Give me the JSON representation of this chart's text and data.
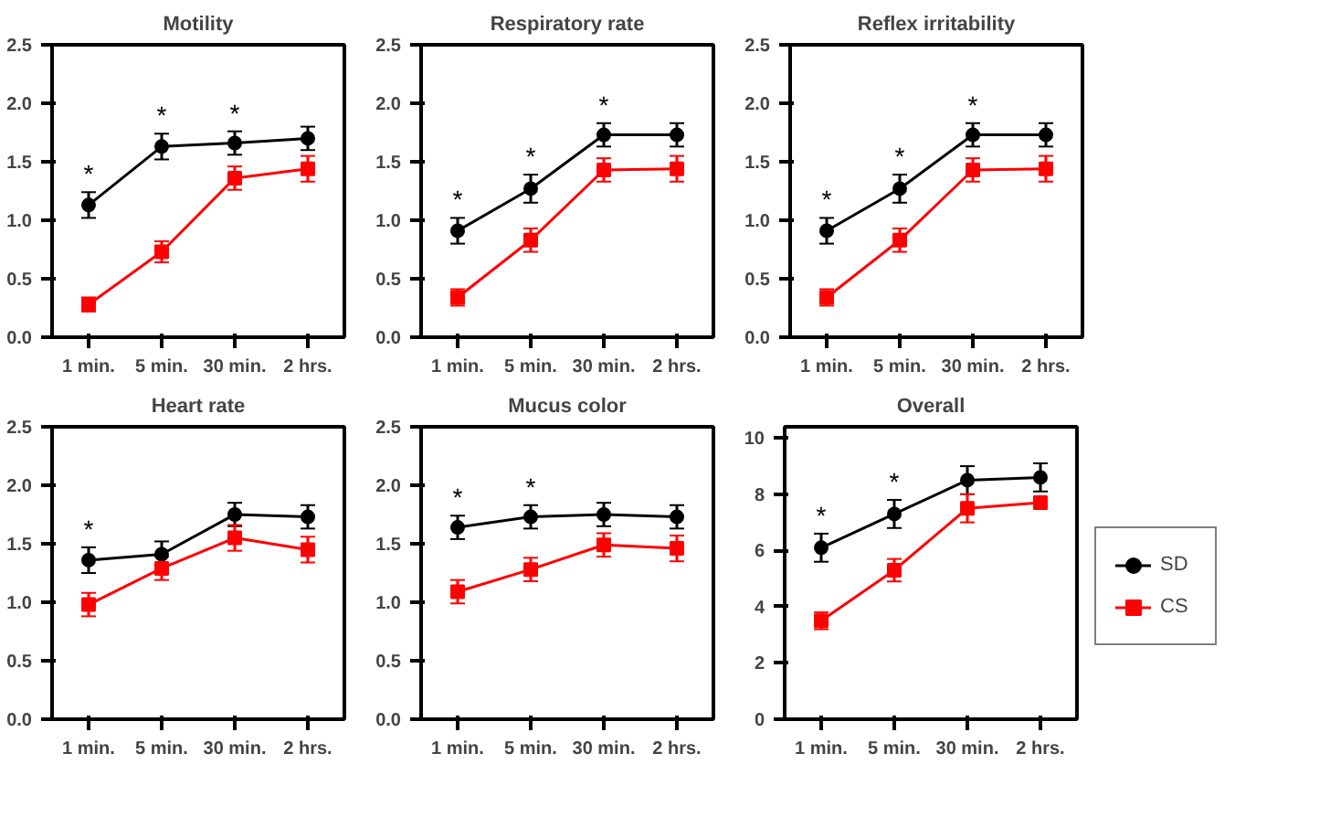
{
  "chart_data": [
    {
      "type": "line",
      "title": "Motility",
      "categories": [
        "1 min.",
        "5 min.",
        "30 min.",
        "2 hrs."
      ],
      "ylim": [
        0,
        2.5
      ],
      "yticks": [
        {
          "value": 0,
          "label": "0.0"
        },
        {
          "value": 0.5,
          "label": "0.5"
        },
        {
          "value": 1,
          "label": "1.0"
        },
        {
          "value": 1.5,
          "label": "1.5"
        },
        {
          "value": 2,
          "label": "2.0"
        },
        {
          "value": 2.5,
          "label": "2.5"
        }
      ],
      "grid": false,
      "series": [
        {
          "color": "#000000",
          "marker": "circle",
          "values": [
            1.13,
            1.63,
            1.66,
            1.7
          ],
          "errors": [
            0.11,
            0.11,
            0.1,
            0.1
          ]
        },
        {
          "color": "#ff0000",
          "marker": "square",
          "values": [
            0.28,
            0.73,
            1.36,
            1.44
          ],
          "errors": [
            0.06,
            0.09,
            0.1,
            0.11
          ]
        }
      ],
      "annotations": [
        {
          "text": "*",
          "x": "1 min.",
          "y": 1.13
        },
        {
          "text": "*",
          "x": "5 min.",
          "y": 1.63
        },
        {
          "text": "*",
          "x": "30 min.",
          "y": 1.66
        }
      ]
    },
    {
      "type": "line",
      "title": "Respiratory rate",
      "categories": [
        "1 min.",
        "5 min.",
        "30 min.",
        "2 hrs."
      ],
      "ylim": [
        0,
        2.5
      ],
      "yticks": [
        {
          "value": 0,
          "label": "0.0"
        },
        {
          "value": 0.5,
          "label": "0.5"
        },
        {
          "value": 1,
          "label": "1.0"
        },
        {
          "value": 1.5,
          "label": "1.5"
        },
        {
          "value": 2,
          "label": "2.0"
        },
        {
          "value": 2.5,
          "label": "2.5"
        }
      ],
      "grid": false,
      "series": [
        {
          "color": "#000000",
          "marker": "circle",
          "values": [
            0.91,
            1.27,
            1.73,
            1.73
          ],
          "errors": [
            0.11,
            0.12,
            0.1,
            0.1
          ]
        },
        {
          "color": "#ff0000",
          "marker": "square",
          "values": [
            0.34,
            0.83,
            1.43,
            1.44
          ],
          "errors": [
            0.07,
            0.1,
            0.1,
            0.11
          ]
        }
      ],
      "annotations": [
        {
          "text": "*",
          "x": "1 min.",
          "y": 0.91
        },
        {
          "text": "*",
          "x": "5 min.",
          "y": 1.27
        },
        {
          "text": "*",
          "x": "30 min.",
          "y": 1.73
        }
      ]
    },
    {
      "type": "line",
      "title": "Reflex irritability",
      "categories": [
        "1 min.",
        "5 min.",
        "30 min.",
        "2 hrs."
      ],
      "ylim": [
        0,
        2.5
      ],
      "yticks": [
        {
          "value": 0,
          "label": "0.0"
        },
        {
          "value": 0.5,
          "label": "0.5"
        },
        {
          "value": 1,
          "label": "1.0"
        },
        {
          "value": 1.5,
          "label": "1.5"
        },
        {
          "value": 2,
          "label": "2.0"
        },
        {
          "value": 2.5,
          "label": "2.5"
        }
      ],
      "grid": false,
      "series": [
        {
          "color": "#000000",
          "marker": "circle",
          "values": [
            0.91,
            1.27,
            1.73,
            1.73
          ],
          "errors": [
            0.11,
            0.12,
            0.1,
            0.1
          ]
        },
        {
          "color": "#ff0000",
          "marker": "square",
          "values": [
            0.34,
            0.83,
            1.43,
            1.44
          ],
          "errors": [
            0.07,
            0.1,
            0.1,
            0.11
          ]
        }
      ],
      "annotations": [
        {
          "text": "*",
          "x": "1 min.",
          "y": 0.91
        },
        {
          "text": "*",
          "x": "5 min.",
          "y": 1.27
        },
        {
          "text": "*",
          "x": "30 min.",
          "y": 1.73
        }
      ]
    },
    {
      "type": "line",
      "title": "Heart rate",
      "categories": [
        "1 min.",
        "5 min.",
        "30 min.",
        "2 hrs."
      ],
      "ylim": [
        0,
        2.5
      ],
      "yticks": [
        {
          "value": 0,
          "label": "0.0"
        },
        {
          "value": 0.5,
          "label": "0.5"
        },
        {
          "value": 1,
          "label": "1.0"
        },
        {
          "value": 1.5,
          "label": "1.5"
        },
        {
          "value": 2,
          "label": "2.0"
        },
        {
          "value": 2.5,
          "label": "2.5"
        }
      ],
      "grid": false,
      "series": [
        {
          "color": "#000000",
          "marker": "circle",
          "values": [
            1.36,
            1.41,
            1.75,
            1.73
          ],
          "errors": [
            0.11,
            0.11,
            0.1,
            0.1
          ]
        },
        {
          "color": "#ff0000",
          "marker": "square",
          "values": [
            0.98,
            1.29,
            1.55,
            1.45
          ],
          "errors": [
            0.1,
            0.1,
            0.11,
            0.11
          ]
        }
      ],
      "annotations": [
        {
          "text": "*",
          "x": "1 min.",
          "y": 1.36
        }
      ]
    },
    {
      "type": "line",
      "title": "Mucus color",
      "categories": [
        "1 min.",
        "5 min.",
        "30 min.",
        "2 hrs."
      ],
      "ylim": [
        0,
        2.5
      ],
      "yticks": [
        {
          "value": 0,
          "label": "0.0"
        },
        {
          "value": 0.5,
          "label": "0.5"
        },
        {
          "value": 1,
          "label": "1.0"
        },
        {
          "value": 1.5,
          "label": "1.5"
        },
        {
          "value": 2,
          "label": "2.0"
        },
        {
          "value": 2.5,
          "label": "2.5"
        }
      ],
      "grid": false,
      "series": [
        {
          "color": "#000000",
          "marker": "circle",
          "values": [
            1.64,
            1.73,
            1.75,
            1.73
          ],
          "errors": [
            0.1,
            0.1,
            0.1,
            0.1
          ]
        },
        {
          "color": "#ff0000",
          "marker": "square",
          "values": [
            1.09,
            1.28,
            1.49,
            1.46
          ],
          "errors": [
            0.1,
            0.1,
            0.1,
            0.11
          ]
        }
      ],
      "annotations": [
        {
          "text": "*",
          "x": "1 min.",
          "y": 1.64
        },
        {
          "text": "*",
          "x": "5 min.",
          "y": 1.73
        }
      ]
    },
    {
      "type": "line",
      "title": "Overall",
      "categories": [
        "1 min.",
        "5 min.",
        "30 min.",
        "2 hrs."
      ],
      "ylim": [
        0,
        10.4
      ],
      "yticks": [
        0,
        2,
        4,
        6,
        8,
        10
      ],
      "grid": false,
      "legend": "right",
      "series": [
        {
          "name": "SD",
          "color": "#000000",
          "marker": "circle",
          "values": [
            6.1,
            7.3,
            8.5,
            8.6
          ],
          "errors": [
            0.5,
            0.5,
            0.5,
            0.5
          ]
        },
        {
          "name": "CS",
          "color": "#ff0000",
          "marker": "square",
          "values": [
            3.5,
            5.3,
            7.5,
            7.7
          ],
          "errors": [
            0.3,
            0.4,
            0.5,
            0.2
          ]
        }
      ],
      "annotations": [
        {
          "text": "*",
          "x": "1 min.",
          "y": 6.1
        },
        {
          "text": "*",
          "x": "5 min.",
          "y": 7.3
        }
      ]
    }
  ]
}
